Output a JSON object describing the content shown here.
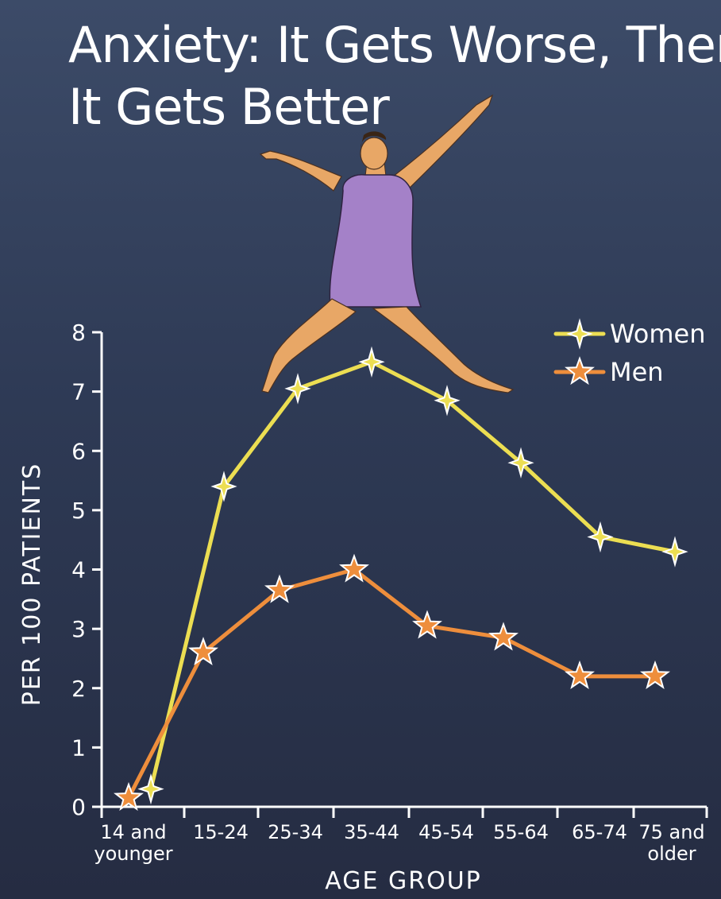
{
  "title_line1": "Anxiety: It Gets Worse, Then",
  "title_line2": "It Gets Better",
  "colors": {
    "women": "#ecde52",
    "men": "#ee8e3c",
    "axis": "#ffffff",
    "skin": "#e8a766",
    "dress": "#a481c8"
  },
  "chart_data": {
    "type": "line",
    "title": "Anxiety: It Gets Worse, Then It Gets Better",
    "xlabel": "AGE GROUP",
    "ylabel": "PER 100 PATIENTS",
    "ylim": [
      0,
      8
    ],
    "yticks": [
      "0",
      "1",
      "2",
      "3",
      "4",
      "5",
      "6",
      "7",
      "8"
    ],
    "categories": [
      [
        "14 and",
        "younger"
      ],
      [
        "15-24"
      ],
      [
        "25-34"
      ],
      [
        "35-44"
      ],
      [
        "45-54"
      ],
      [
        "55-64"
      ],
      [
        "65-74"
      ],
      [
        "75 and",
        "older"
      ]
    ],
    "legend_position": "top-right",
    "grid": false,
    "series": [
      {
        "name": "Women",
        "marker": "sparkle",
        "values": [
          0.3,
          5.4,
          7.05,
          7.5,
          6.85,
          5.8,
          4.55,
          4.3
        ]
      },
      {
        "name": "Men",
        "marker": "star",
        "values": [
          0.15,
          2.6,
          3.65,
          4.0,
          3.05,
          2.85,
          2.2,
          2.2
        ]
      }
    ]
  }
}
